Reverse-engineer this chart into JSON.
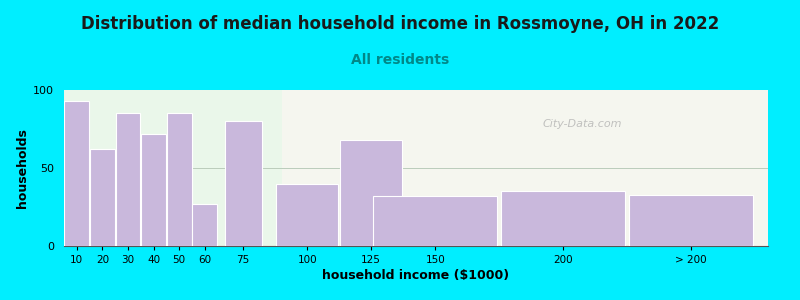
{
  "title": "Distribution of median household income in Rossmoyne, OH in 2022",
  "subtitle": "All residents",
  "xlabel": "household income ($1000)",
  "ylabel": "households",
  "background_outer": "#00eeff",
  "bar_color": "#c9b8dc",
  "bar_edge_color": "#ffffff",
  "bar_positions": [
    10,
    20,
    30,
    40,
    50,
    60,
    75,
    100,
    125,
    150,
    200,
    250
  ],
  "bar_widths": [
    10,
    10,
    10,
    10,
    10,
    10,
    15,
    25,
    25,
    50,
    50,
    50
  ],
  "bar_heights": [
    93,
    62,
    85,
    72,
    85,
    27,
    80,
    40,
    68,
    32,
    35,
    33
  ],
  "ylim": [
    0,
    100
  ],
  "yticks": [
    0,
    50,
    100
  ],
  "xtick_labels": [
    "10",
    "20",
    "30",
    "40",
    "50",
    "60",
    "75",
    "100",
    "125",
    "150",
    "200",
    "> 200"
  ],
  "title_fontsize": 12,
  "subtitle_fontsize": 10,
  "axis_label_fontsize": 9,
  "watermark_text": "City-Data.com",
  "title_color": "#1a1a1a",
  "subtitle_color": "#008888",
  "bg_left_color": "#edfaed",
  "bg_right_color": "#f8f8f0"
}
